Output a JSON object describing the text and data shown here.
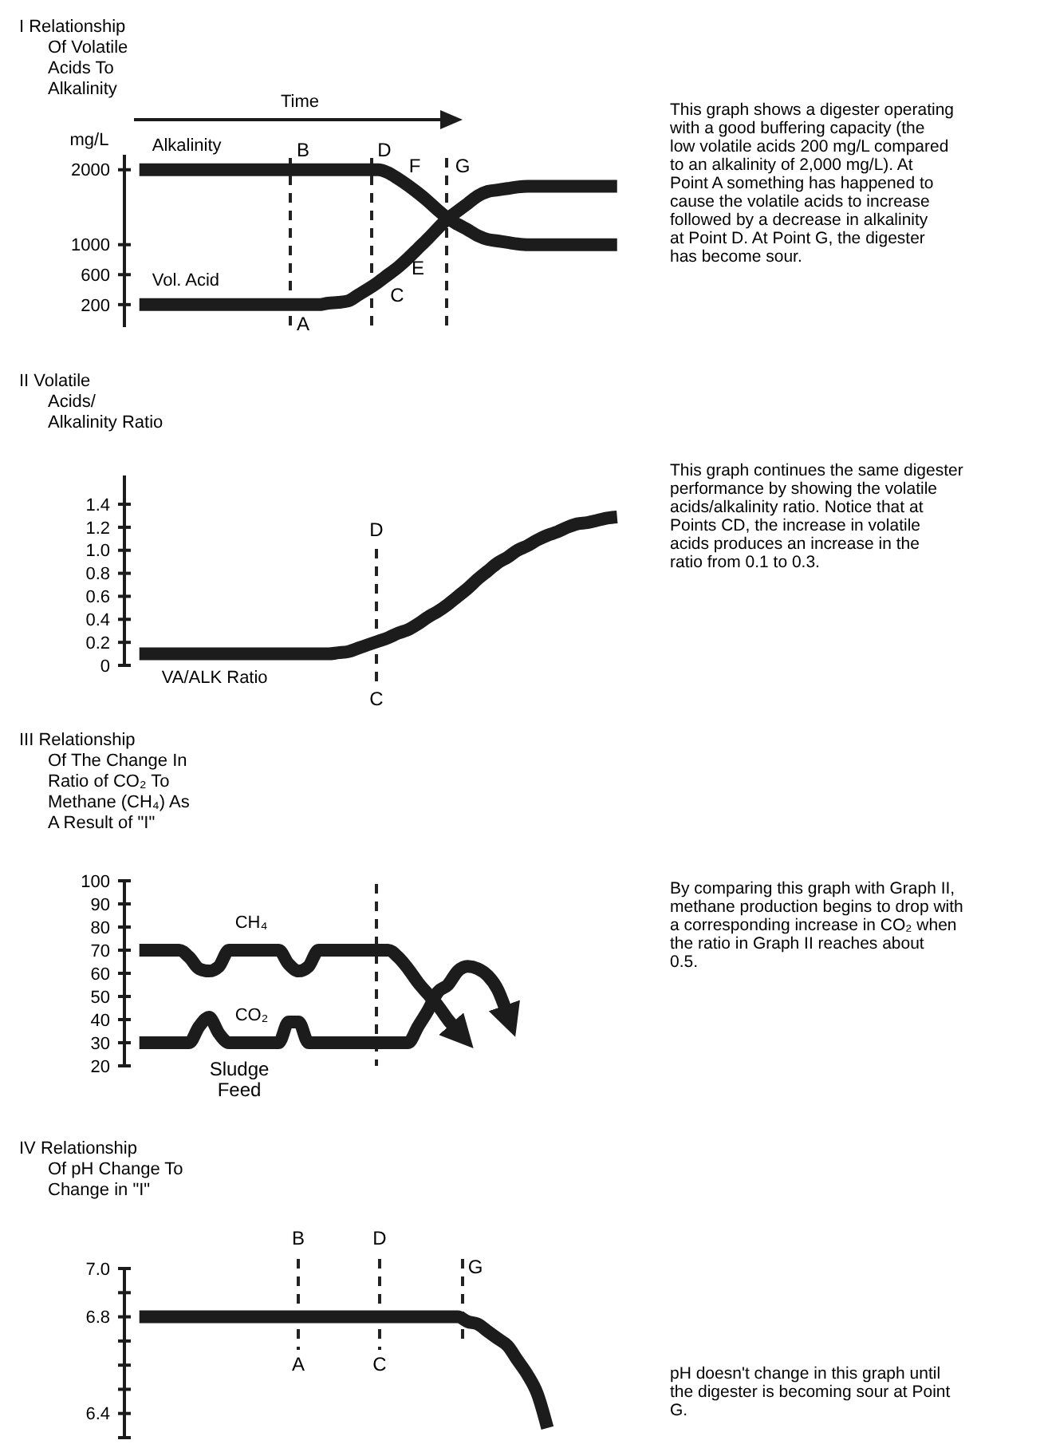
{
  "chart_data": [
    {
      "type": "line",
      "title": "I Relationship Of Volatile Acids To Alkalinity",
      "xlabel": "Time",
      "ylabel": "mg/L",
      "ylim": [
        -100,
        2200
      ],
      "yticks": [
        200,
        600,
        1000,
        2000
      ],
      "tick_labels": "y",
      "categories": [
        null,
        null,
        null,
        null,
        null,
        null,
        null,
        null,
        null,
        null,
        null,
        null,
        null,
        null,
        null,
        null,
        null,
        null,
        null,
        null,
        null,
        null,
        null,
        null,
        null,
        null,
        null,
        null,
        null,
        null,
        null,
        null,
        null,
        null,
        null,
        null,
        null,
        null,
        null,
        null,
        null,
        null,
        null,
        null,
        null,
        null,
        null,
        null,
        null,
        null
      ],
      "series": [
        {
          "name": "Alkalinity",
          "color": "#1c1c1c",
          "values": [
            null,
            2000,
            2000,
            2000,
            2000,
            2000,
            2000,
            2000,
            2000,
            2000,
            2000,
            2000,
            2000,
            2000,
            2000,
            2000,
            2000,
            2000,
            2000,
            2000,
            2000,
            2000,
            2000,
            2000,
            2000,
            2000,
            1960,
            1880,
            1790,
            1690,
            1580,
            1460,
            1350,
            1270,
            1200,
            1120,
            1070,
            1050,
            1030,
            1010,
            1000,
            1000,
            1000,
            1000,
            1000,
            1000,
            1000,
            1000,
            1000,
            1000
          ]
        },
        {
          "name": "Vol. Acid",
          "color": "#1c1c1c",
          "values": [
            null,
            200,
            200,
            200,
            200,
            200,
            200,
            200,
            200,
            200,
            200,
            200,
            200,
            200,
            200,
            200,
            200,
            200,
            200,
            200,
            220,
            230,
            250,
            330,
            410,
            500,
            600,
            700,
            820,
            950,
            1080,
            1220,
            1350,
            1450,
            1550,
            1650,
            1710,
            1730,
            1750,
            1770,
            1780,
            1780,
            1780,
            1780,
            1780,
            1780,
            1780,
            1780,
            1780,
            1780
          ]
        }
      ],
      "annotations": [
        "B",
        "D",
        "G",
        "A",
        "C",
        "E",
        "F",
        "This graph shows a digester operating with a good buffering capacity (the low volatile acids 200 mg/L compared to an alkalinity of 2,000 mg/L). At Point A something has happened to cause the volatile acids to increase followed by a decrease in alkalinity at Point D. At Point G, the digester has become sour."
      ]
    },
    {
      "type": "line",
      "title": "II Volatile Acids/ Alkalinity Ratio",
      "ylim": [
        0,
        1.65
      ],
      "yticks": [
        0,
        0.2,
        0.4,
        0.6,
        0.8,
        {
          "value": 1,
          "label": "1.0"
        },
        1.2,
        1.4
      ],
      "tick_labels": "y",
      "categories": [
        null,
        null,
        null,
        null,
        null,
        null,
        null,
        null,
        null,
        null,
        null,
        null,
        null,
        null,
        null,
        null,
        null,
        null,
        null,
        null,
        null,
        null,
        null,
        null,
        null,
        null,
        null,
        null,
        null,
        null,
        null,
        null,
        null,
        null,
        null,
        null,
        null,
        null,
        null,
        null,
        null,
        null,
        null,
        null,
        null,
        null,
        null,
        null,
        null,
        null
      ],
      "series": [
        {
          "name": "VA/ALK Ratio",
          "color": "#1c1c1c",
          "values": [
            null,
            0.1,
            0.1,
            0.1,
            0.1,
            0.1,
            0.1,
            0.1,
            0.1,
            0.1,
            0.1,
            0.1,
            0.1,
            0.1,
            0.1,
            0.1,
            0.1,
            0.1,
            0.1,
            0.1,
            0.1,
            0.11,
            0.12,
            0.15,
            0.18,
            0.21,
            0.24,
            0.28,
            0.31,
            0.36,
            0.42,
            0.47,
            0.53,
            0.6,
            0.67,
            0.75,
            0.82,
            0.89,
            0.94,
            1.0,
            1.04,
            1.09,
            1.13,
            1.16,
            1.2,
            1.23,
            1.24,
            1.26,
            1.28,
            1.29
          ]
        }
      ],
      "annotations": [
        "D",
        "C",
        "This graph continues the same digester performance by showing the volatile acids/alkalinity ratio. Notice that at Points CD, the increase in volatile acids produces an increase in the ratio from 0.1 to 0.3."
      ]
    },
    {
      "type": "line",
      "title": "III Relationship Of The Change In Ratio of CO₂ To Methane (CH₄) As A Result of \"I\"",
      "ylim": [
        20,
        100
      ],
      "yticks": [
        20,
        30,
        40,
        50,
        60,
        70,
        80,
        90,
        100
      ],
      "tick_labels": "y",
      "categories": [
        null,
        null,
        null,
        null,
        null,
        null,
        null,
        null,
        null,
        null,
        null,
        null,
        null,
        null,
        null,
        null,
        null,
        null,
        null,
        null,
        null,
        null,
        null,
        null,
        null,
        null,
        null,
        null,
        null,
        null,
        null,
        null,
        null,
        null,
        null,
        null,
        null,
        null,
        null,
        null,
        null,
        null,
        null,
        null,
        null,
        null,
        null,
        null,
        null,
        null
      ],
      "series": [
        {
          "name": "CH₄",
          "color": "#1c1c1c",
          "values": [
            null,
            70,
            70,
            70,
            70,
            70,
            67,
            62,
            61,
            63,
            70,
            70,
            70,
            70,
            70,
            70,
            64,
            61,
            63,
            70,
            70,
            70,
            70,
            70,
            70,
            70,
            70,
            67,
            62,
            56,
            51,
            46,
            40,
            35,
            null,
            null,
            null,
            null,
            null,
            null,
            null,
            null,
            null,
            null,
            null,
            null,
            null,
            null,
            null,
            null
          ]
        },
        {
          "name": "CO₂",
          "color": "#1c1c1c",
          "values": [
            null,
            30,
            30,
            30,
            30,
            30,
            30,
            37,
            41,
            34,
            30,
            30,
            30,
            30,
            30,
            30,
            39,
            39,
            30,
            30,
            30,
            30,
            30,
            30,
            30,
            30,
            30,
            30,
            30,
            37,
            44,
            52,
            55,
            61,
            63,
            62,
            59,
            53,
            42,
            null,
            null,
            null,
            null,
            null,
            null,
            null,
            null,
            null,
            null,
            null
          ]
        }
      ],
      "annotations": [
        "Sludge Feed",
        "By comparing this graph with Graph II, methane production begins to drop with a corresponding increase in CO₂ when the ratio in Graph II reaches about 0.5."
      ]
    },
    {
      "type": "line",
      "title": "IV Relationship Of pH Change To Change in \"I\"",
      "ylim": [
        6.3,
        7.0
      ],
      "yticks": [
        {
          "value": 7,
          "label": "7.0"
        },
        {
          "value": 6.9,
          "label": null
        },
        6.8,
        {
          "value": 6.7,
          "label": null
        },
        {
          "value": 6.6,
          "label": null
        },
        {
          "value": 6.5,
          "label": null
        },
        6.4,
        {
          "value": 6.3,
          "label": null
        }
      ],
      "tick_labels": "y",
      "categories": [
        null,
        null,
        null,
        null,
        null,
        null,
        null,
        null,
        null,
        null,
        null,
        null,
        null,
        null,
        null,
        null,
        null,
        null,
        null,
        null,
        null,
        null,
        null,
        null,
        null,
        null,
        null,
        null,
        null,
        null,
        null,
        null,
        null,
        null,
        null,
        null,
        null,
        null,
        null,
        null,
        null,
        null,
        null,
        null,
        null,
        null,
        null,
        null,
        null,
        null
      ],
      "series": [
        {
          "color": "#1c1c1c",
          "values": [
            null,
            6.8,
            6.8,
            6.8,
            6.8,
            6.8,
            6.8,
            6.8,
            6.8,
            6.8,
            6.8,
            6.8,
            6.8,
            6.8,
            6.8,
            6.8,
            6.8,
            6.8,
            6.8,
            6.8,
            6.8,
            6.8,
            6.8,
            6.8,
            6.8,
            6.8,
            6.8,
            6.8,
            6.8,
            6.8,
            6.8,
            6.8,
            6.8,
            6.8,
            6.78,
            6.77,
            6.74,
            6.71,
            6.68,
            6.62,
            6.56,
            6.48,
            6.34,
            null,
            null,
            null,
            null,
            null,
            null,
            null
          ]
        }
      ],
      "annotations": [
        "B",
        "D",
        "G",
        "A",
        "C",
        "pH doesn't change in this graph until the digester is becoming sour at Point G."
      ]
    }
  ]
}
